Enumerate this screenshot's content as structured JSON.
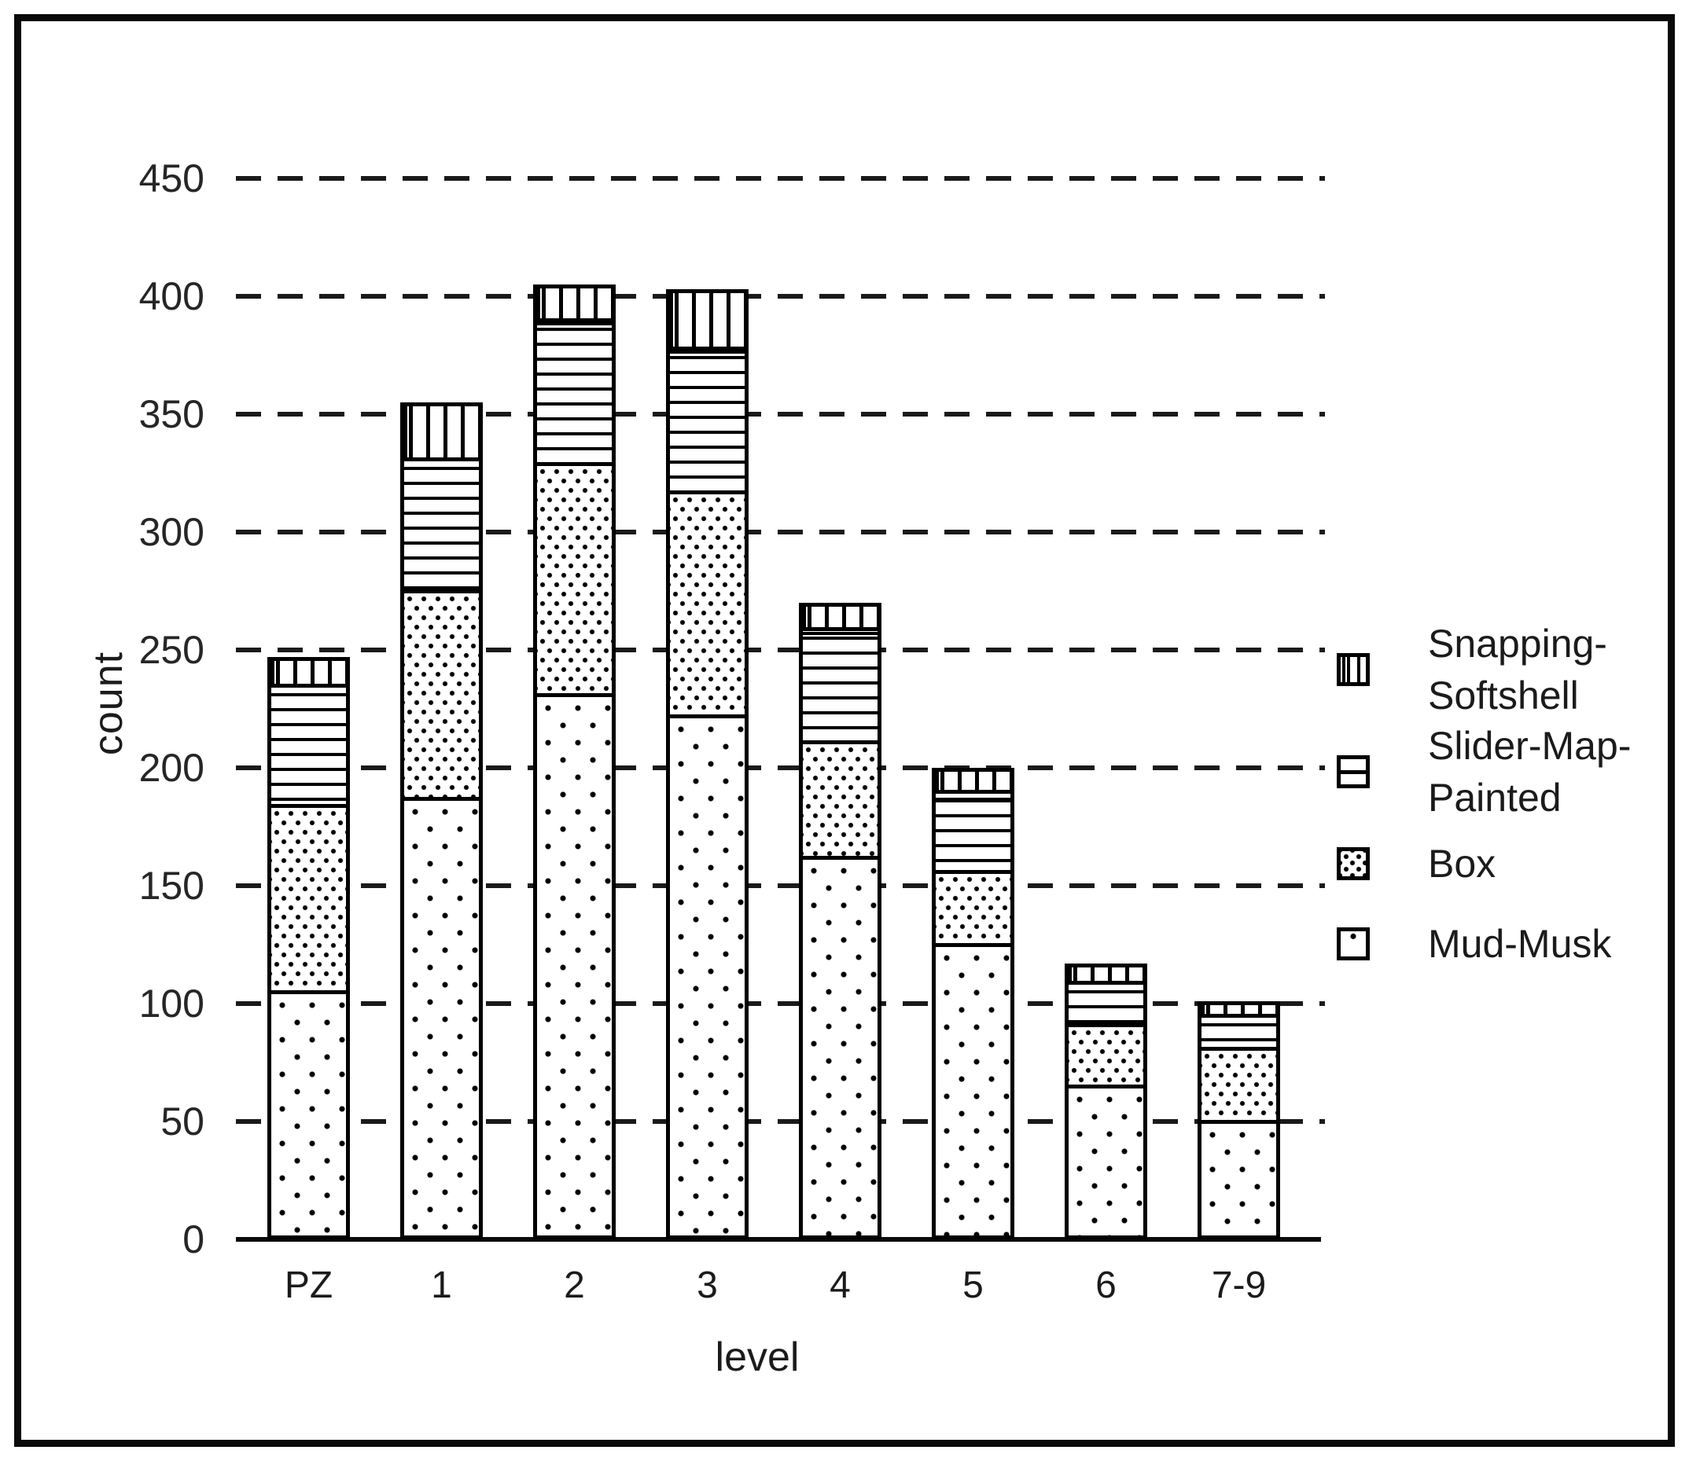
{
  "chart_data": {
    "type": "bar",
    "stacked": true,
    "title": "",
    "xlabel": "level",
    "ylabel": "count",
    "categories": [
      "PZ",
      "1",
      "2",
      "3",
      "4",
      "5",
      "6",
      "7-9"
    ],
    "series": [
      {
        "name": "Mud-Musk",
        "pattern": "dots-sparse",
        "values": [
          104,
          186,
          230,
          221,
          161,
          124,
          64,
          49
        ]
      },
      {
        "name": "Box",
        "pattern": "dots-dense",
        "values": [
          79,
          88,
          98,
          95,
          49,
          31,
          26,
          31
        ]
      },
      {
        "name": "Slider-Map-Painted",
        "pattern": "hlines",
        "values": [
          51,
          56,
          61,
          61,
          48,
          34,
          18,
          14
        ]
      },
      {
        "name": "Snapping-Softshell",
        "pattern": "vlines",
        "values": [
          13,
          25,
          16,
          26,
          12,
          11,
          9,
          7
        ]
      }
    ],
    "stack_totals": [
      247,
      355,
      405,
      403,
      270,
      200,
      117,
      101
    ],
    "ylim": [
      0,
      450
    ],
    "ytick_step": 50,
    "y_ticks": [
      "450",
      "400",
      "350",
      "300",
      "250",
      "200",
      "150",
      "100",
      "50",
      "0"
    ],
    "grid": "horizontal-dashed",
    "legend_position": "right-center",
    "legend_order_top_to_bottom": [
      "Snapping-Softshell",
      "Slider-Map-Painted",
      "Box",
      "Mud-Musk"
    ]
  },
  "legend": {
    "items": [
      {
        "label": "Snapping-\nSoftshell",
        "pattern": "vlines"
      },
      {
        "label": "Slider-Map-\nPainted",
        "pattern": "hlines"
      },
      {
        "label": "Box",
        "pattern": "dots-dense"
      },
      {
        "label": "Mud-Musk",
        "pattern": "dots-sparse"
      }
    ]
  }
}
